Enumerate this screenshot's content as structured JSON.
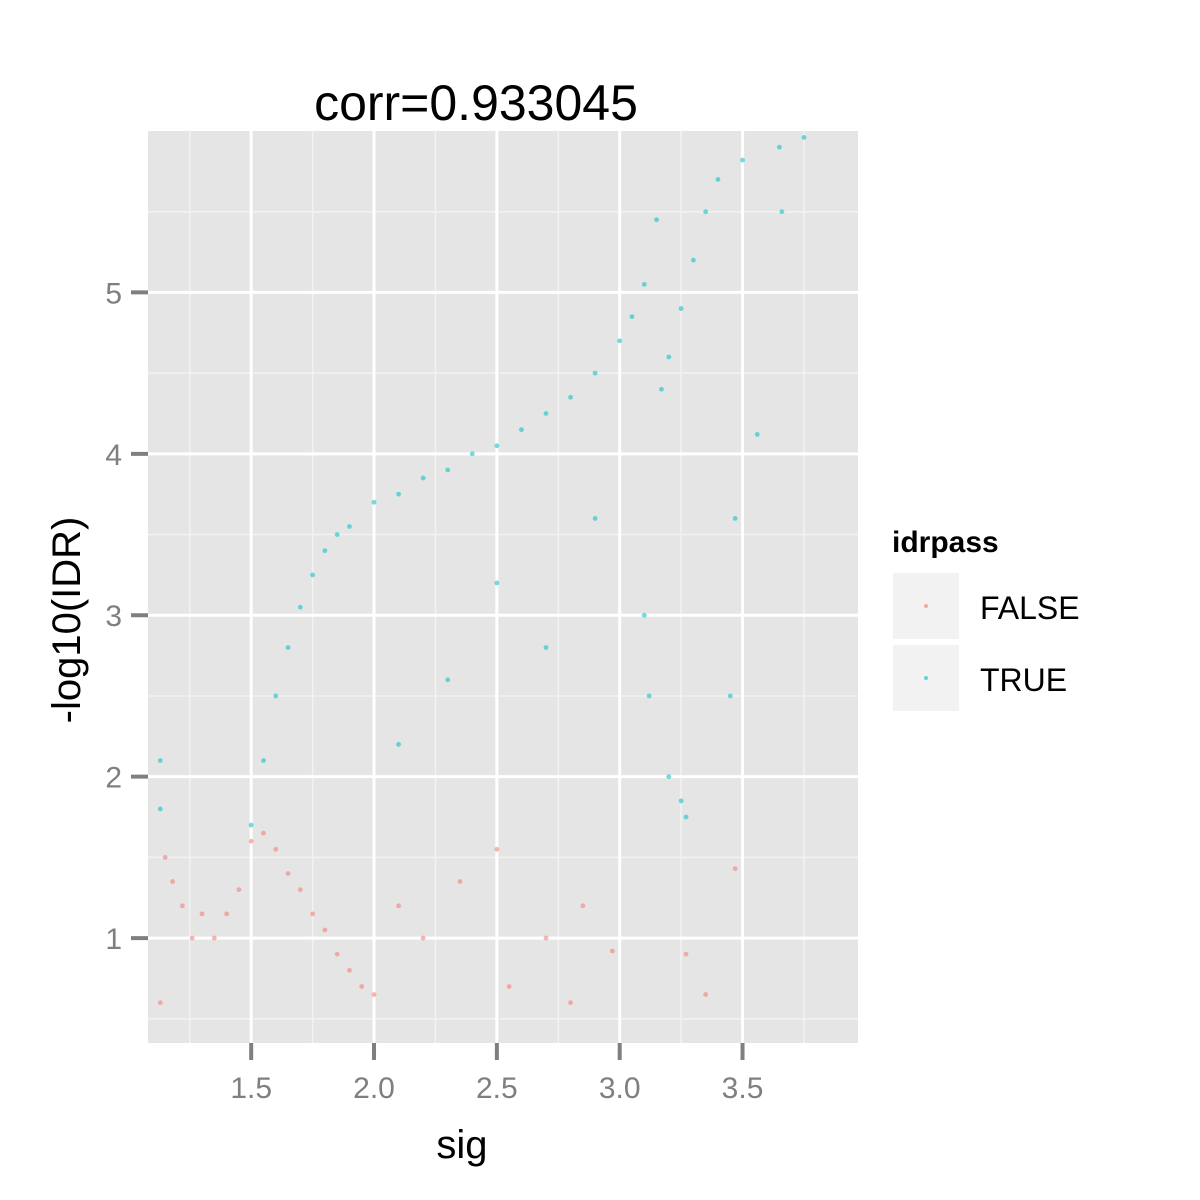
{
  "chart_data": {
    "type": "scatter",
    "title": "corr=0.933045",
    "xlabel": "sig",
    "ylabel": "-log10(IDR)",
    "xlim": [
      1.08,
      3.97
    ],
    "ylim": [
      0.35,
      6.0
    ],
    "x_ticks": [
      1.5,
      2.0,
      2.5,
      3.0,
      3.5
    ],
    "x_tick_labels": [
      "1.5",
      "2.0",
      "2.5",
      "3.0",
      "3.5"
    ],
    "y_ticks": [
      1,
      2,
      3,
      4,
      5
    ],
    "y_tick_labels": [
      "1",
      "2",
      "3",
      "4",
      "5"
    ],
    "grid": true,
    "idr_threshold": 1.7,
    "legend": {
      "title": "idrpass",
      "position": "right",
      "entries": [
        {
          "label": "FALSE",
          "color": "#F8766D"
        },
        {
          "label": "TRUE",
          "color": "#00BFC4"
        }
      ]
    },
    "series": [
      {
        "name": "FALSE",
        "color": "#F8766D",
        "points": [
          [
            1.13,
            0.6
          ],
          [
            1.15,
            1.5
          ],
          [
            1.18,
            1.35
          ],
          [
            1.22,
            1.2
          ],
          [
            1.26,
            1.0
          ],
          [
            1.3,
            1.15
          ],
          [
            1.35,
            1.0
          ],
          [
            1.4,
            1.15
          ],
          [
            1.45,
            1.3
          ],
          [
            1.5,
            1.6
          ],
          [
            1.55,
            1.65
          ],
          [
            1.6,
            1.55
          ],
          [
            1.65,
            1.4
          ],
          [
            1.7,
            1.3
          ],
          [
            1.75,
            1.15
          ],
          [
            1.8,
            1.05
          ],
          [
            1.85,
            0.9
          ],
          [
            1.9,
            0.8
          ],
          [
            1.95,
            0.7
          ],
          [
            2.0,
            0.65
          ],
          [
            2.1,
            1.2
          ],
          [
            2.2,
            1.0
          ],
          [
            2.35,
            1.35
          ],
          [
            2.5,
            1.55
          ],
          [
            2.55,
            0.7
          ],
          [
            2.7,
            1.0
          ],
          [
            2.8,
            0.6
          ],
          [
            2.85,
            1.2
          ],
          [
            2.97,
            0.92
          ],
          [
            3.27,
            0.9
          ],
          [
            3.35,
            0.65
          ],
          [
            3.47,
            1.43
          ]
        ]
      },
      {
        "name": "TRUE",
        "color": "#00BFC4",
        "points": [
          [
            1.13,
            2.1
          ],
          [
            1.13,
            1.8
          ],
          [
            1.5,
            1.7
          ],
          [
            1.55,
            2.1
          ],
          [
            1.6,
            2.5
          ],
          [
            1.65,
            2.8
          ],
          [
            1.7,
            3.05
          ],
          [
            1.75,
            3.25
          ],
          [
            1.8,
            3.4
          ],
          [
            1.85,
            3.5
          ],
          [
            1.9,
            3.55
          ],
          [
            2.0,
            3.7
          ],
          [
            2.1,
            3.75
          ],
          [
            2.2,
            3.85
          ],
          [
            2.3,
            3.9
          ],
          [
            2.4,
            4.0
          ],
          [
            2.5,
            4.05
          ],
          [
            2.6,
            4.15
          ],
          [
            2.7,
            4.25
          ],
          [
            2.8,
            4.35
          ],
          [
            2.9,
            4.5
          ],
          [
            3.0,
            4.7
          ],
          [
            3.05,
            4.85
          ],
          [
            3.1,
            5.05
          ],
          [
            3.15,
            5.45
          ],
          [
            3.17,
            4.4
          ],
          [
            3.2,
            4.6
          ],
          [
            3.25,
            4.9
          ],
          [
            3.3,
            5.2
          ],
          [
            3.35,
            5.5
          ],
          [
            3.4,
            5.7
          ],
          [
            3.5,
            5.82
          ],
          [
            3.65,
            5.9
          ],
          [
            3.75,
            5.96
          ],
          [
            3.66,
            5.5
          ],
          [
            3.56,
            4.12
          ],
          [
            3.1,
            3.0
          ],
          [
            3.12,
            2.5
          ],
          [
            3.2,
            2.0
          ],
          [
            3.25,
            1.85
          ],
          [
            3.27,
            1.75
          ],
          [
            2.3,
            2.6
          ],
          [
            2.5,
            3.2
          ],
          [
            2.7,
            2.8
          ],
          [
            2.9,
            3.6
          ],
          [
            3.47,
            3.6
          ],
          [
            3.45,
            2.5
          ],
          [
            2.1,
            2.2
          ]
        ]
      }
    ]
  }
}
